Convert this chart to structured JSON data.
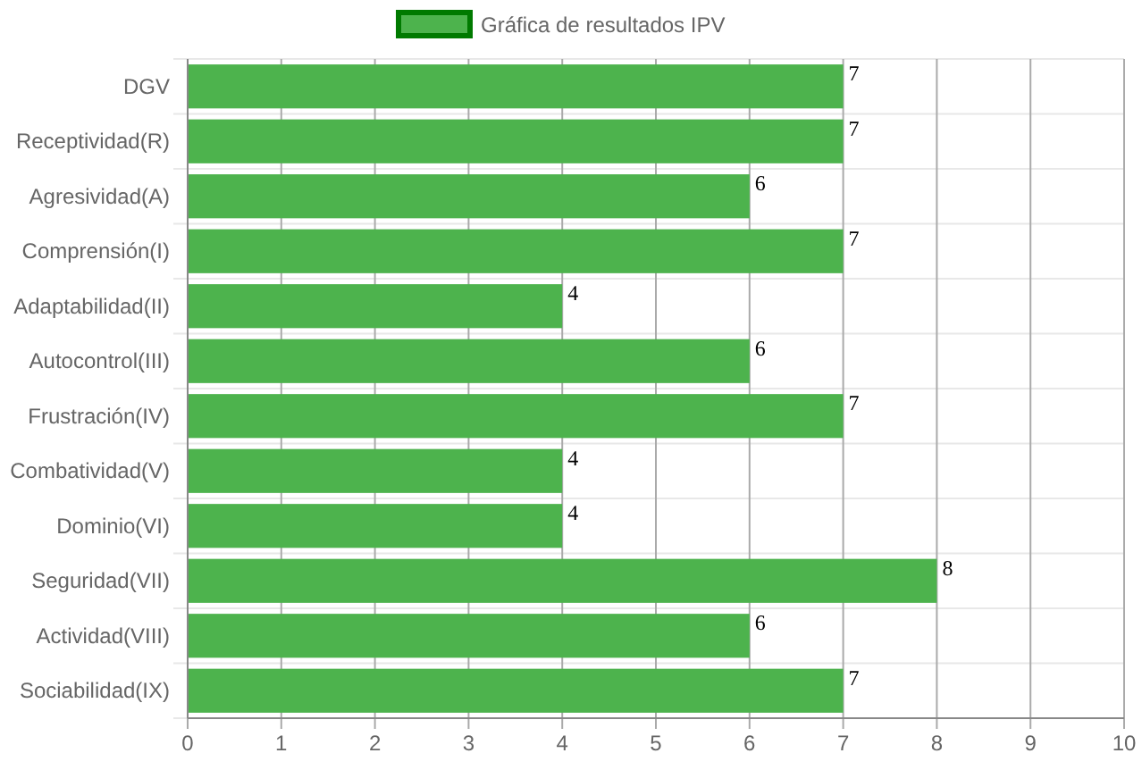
{
  "chart_data": {
    "type": "bar",
    "orientation": "horizontal",
    "categories": [
      "DGV",
      "Receptividad(R)",
      "Agresividad(A)",
      "Comprensión(I)",
      "Adaptabilidad(II)",
      "Autocontrol(III)",
      "Frustración(IV)",
      "Combatividad(V)",
      "Dominio(VI)",
      "Seguridad(VII)",
      "Actividad(VIII)",
      "Sociabilidad(IX)"
    ],
    "series": [
      {
        "name": "Gráfica de resultados IPV",
        "color": "#4db34d",
        "values": [
          7,
          7,
          6,
          7,
          4,
          6,
          7,
          4,
          4,
          8,
          6,
          7
        ]
      }
    ],
    "xlim": [
      0,
      10
    ],
    "xticks": [
      0,
      1,
      2,
      3,
      4,
      5,
      6,
      7,
      8,
      9,
      10
    ],
    "grid": true,
    "legend": "top",
    "data_labels": true
  }
}
